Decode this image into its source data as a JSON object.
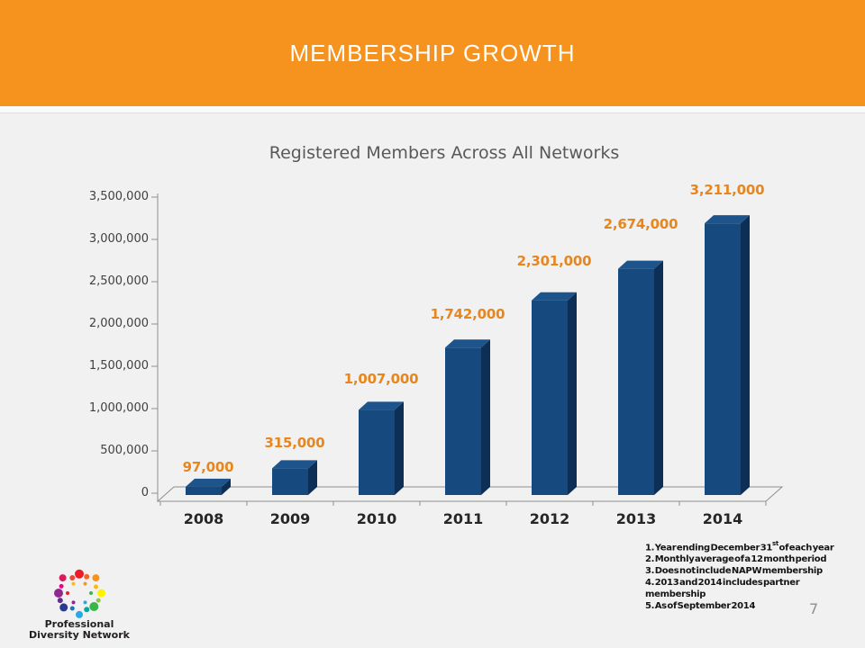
{
  "slide": {
    "title": "MEMBERSHIP GROWTH",
    "page_number": "7",
    "band_color": "#F6921E",
    "background_color": "#F1F1F2"
  },
  "chart_data": {
    "type": "bar",
    "style": "3d",
    "legend": "none",
    "grid": false,
    "title": "Registered Members Across All Networks",
    "categories": [
      "2008",
      "2009",
      "2010",
      "2011",
      "2012",
      "2013",
      "2014"
    ],
    "values": [
      97000,
      315000,
      1007000,
      1742000,
      2301000,
      2674000,
      3211000
    ],
    "labels": [
      "97,000",
      "315,000",
      "1,007,000",
      "1,742,000",
      "2,301,000",
      "2,674,000",
      "3,211,000"
    ],
    "xlabel": "",
    "ylabel": "",
    "ylim": [
      0,
      3500000
    ],
    "ytick_step": 500000,
    "ytick_labels": [
      "0",
      "500,000",
      "1,000,000",
      "1,500,000",
      "2,000,000",
      "2,500,000",
      "3,000,000",
      "3,500,000"
    ],
    "colors": {
      "bar_front": "#164A7E",
      "bar_top": "#1E548C",
      "bar_side": "#0E2F55",
      "data_label": "#E8861E",
      "axis": "#8F8F8F",
      "title": "#595959",
      "tick_label": "#404040",
      "category_label": "#262626"
    }
  },
  "footnotes": [
    {
      "text": "1. Year ending December 31",
      "sup": "st",
      "rest": " of each year"
    },
    {
      "text": "2. Monthly average of a 12 month period"
    },
    {
      "text": "3. Does not include NAPW membership"
    },
    {
      "text": "4. 2013 and 2014 includes partner membership"
    },
    {
      "text": "5. As of September 2014"
    }
  ],
  "logo": {
    "line1": "Professional",
    "line2": "Diversity Network",
    "dot_colors": [
      "#ED1C24",
      "#F26522",
      "#F7941E",
      "#FDB913",
      "#FFF200",
      "#8DC63F",
      "#39B54A",
      "#00A99D",
      "#27AAE1",
      "#1B75BC",
      "#2B3990",
      "#662D91",
      "#92278F",
      "#EC008C",
      "#D91C5C",
      "#E04E39"
    ],
    "inner_dot_colors": [
      "#F7941E",
      "#39B54A",
      "#27AAE1",
      "#92278F",
      "#ED1C24",
      "#FDB913"
    ]
  }
}
